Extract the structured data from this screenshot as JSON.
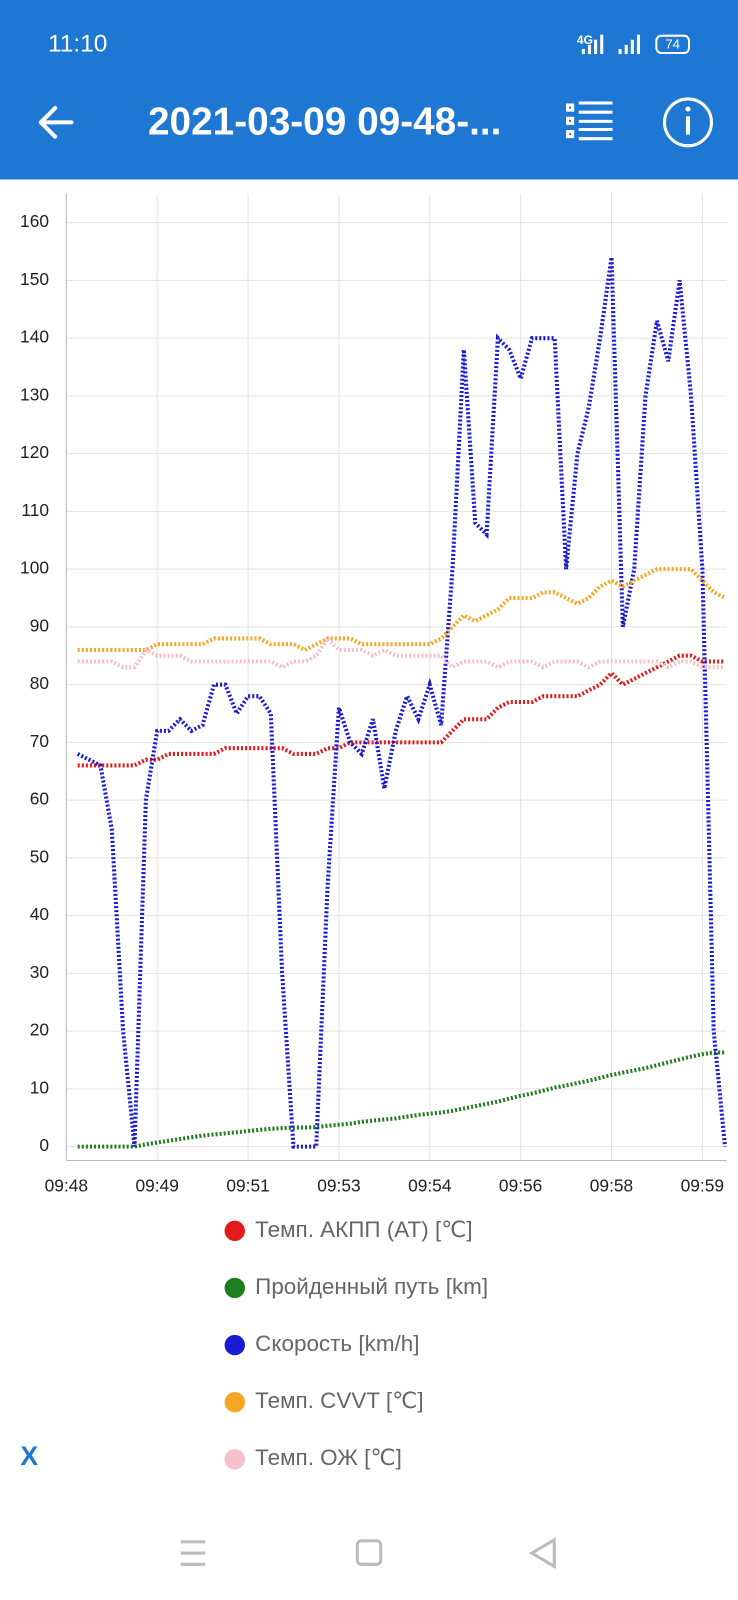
{
  "status_bar": {
    "time": "11:10",
    "network": "4G",
    "battery": "74"
  },
  "header": {
    "title": "2021-03-09 09-48-..."
  },
  "close_button": "X",
  "chart_data": {
    "type": "line",
    "x": [
      48.2,
      48.4,
      48.6,
      48.8,
      49.0,
      49.2,
      49.4,
      49.6,
      49.8,
      50.0,
      50.2,
      50.4,
      50.6,
      50.8,
      51.0,
      51.2,
      51.4,
      51.6,
      51.8,
      52.0,
      52.2,
      52.4,
      52.6,
      52.8,
      53.0,
      53.2,
      53.4,
      53.6,
      53.8,
      54.0,
      54.2,
      54.4,
      54.6,
      54.8,
      55.0,
      55.2,
      55.4,
      55.6,
      55.8,
      56.0,
      56.2,
      56.4,
      56.6,
      56.8,
      57.0,
      57.2,
      57.4,
      57.6,
      57.8,
      58.0,
      58.2,
      58.4,
      58.6,
      58.8,
      59.0,
      59.2,
      59.4,
      59.6
    ],
    "xlim": [
      48,
      59.63
    ],
    "xticks": [
      {
        "value": 48,
        "label": "09:48"
      },
      {
        "value": 49.6,
        "label": "09:49"
      },
      {
        "value": 51.2,
        "label": "09:51"
      },
      {
        "value": 52.8,
        "label": "09:53"
      },
      {
        "value": 54.4,
        "label": "09:54"
      },
      {
        "value": 56,
        "label": "09:56"
      },
      {
        "value": 57.6,
        "label": "09:58"
      },
      {
        "value": 59.2,
        "label": "09:59"
      }
    ],
    "ylim": [
      -2.4,
      165
    ],
    "yticks": [
      0,
      10,
      20,
      30,
      40,
      50,
      60,
      70,
      80,
      90,
      100,
      110,
      120,
      130,
      140,
      150,
      160
    ],
    "grid": true,
    "series": [
      {
        "name": "Темп. АКПП (AT) [℃]",
        "color": "#e41a1a",
        "values": [
          66,
          66,
          66,
          66,
          66,
          66,
          67,
          67,
          68,
          68,
          68,
          68,
          68,
          69,
          69,
          69,
          69,
          69,
          69,
          68,
          68,
          68,
          69,
          69,
          70,
          70,
          70,
          70,
          70,
          70,
          70,
          70,
          70,
          72,
          74,
          74,
          74,
          76,
          77,
          77,
          77,
          78,
          78,
          78,
          78,
          79,
          80,
          82,
          80,
          81,
          82,
          83,
          84,
          85,
          85,
          84,
          84,
          84
        ]
      },
      {
        "name": "Пройденный путь [km]",
        "color": "#1e7d1e",
        "values": [
          0,
          0,
          0,
          0,
          0,
          0,
          0.4,
          0.7,
          1,
          1.3,
          1.6,
          1.9,
          2.1,
          2.3,
          2.5,
          2.7,
          2.9,
          3.1,
          3.2,
          3.3,
          3.3,
          3.4,
          3.6,
          3.8,
          4,
          4.3,
          4.5,
          4.7,
          4.9,
          5.2,
          5.5,
          5.7,
          5.9,
          6.2,
          6.6,
          7,
          7.4,
          7.8,
          8.3,
          8.8,
          9.2,
          9.7,
          10.2,
          10.6,
          11,
          11.4,
          11.9,
          12.4,
          12.8,
          13.2,
          13.6,
          14.1,
          14.6,
          15.1,
          15.6,
          16,
          16.3,
          16.3
        ]
      },
      {
        "name": "Скорость [km/h]",
        "color": "#1a1ad0",
        "values": [
          68,
          67,
          66,
          55,
          20,
          0,
          60,
          72,
          72,
          74,
          72,
          73,
          80,
          80,
          75,
          78,
          78,
          75,
          30,
          0,
          0,
          0,
          45,
          76,
          70,
          68,
          74,
          62,
          72,
          78,
          74,
          80,
          73,
          100,
          138,
          108,
          106,
          140,
          138,
          133,
          140,
          140,
          140,
          100,
          120,
          128,
          140,
          154,
          90,
          100,
          130,
          143,
          136,
          150,
          130,
          100,
          20,
          0
        ]
      },
      {
        "name": "Темп. CVVT [℃]",
        "color": "#f5a623",
        "values": [
          86,
          86,
          86,
          86,
          86,
          86,
          86,
          87,
          87,
          87,
          87,
          87,
          88,
          88,
          88,
          88,
          88,
          87,
          87,
          87,
          86,
          87,
          88,
          88,
          88,
          87,
          87,
          87,
          87,
          87,
          87,
          87,
          88,
          90,
          92,
          91,
          92,
          93,
          95,
          95,
          95,
          96,
          96,
          95,
          94,
          95,
          97,
          98,
          97,
          98,
          99,
          100,
          100,
          100,
          100,
          98,
          96,
          95
        ]
      },
      {
        "name": "Темп. ОЖ [℃]",
        "color": "#f7bfc9",
        "values": [
          84,
          84,
          84,
          84,
          83,
          83,
          86,
          85,
          85,
          85,
          84,
          84,
          84,
          84,
          84,
          84,
          84,
          84,
          83,
          84,
          84,
          85,
          88,
          86,
          86,
          86,
          85,
          86,
          85,
          85,
          85,
          85,
          85,
          83,
          84,
          84,
          84,
          83,
          84,
          84,
          84,
          83,
          84,
          84,
          84,
          83,
          84,
          84,
          84,
          84,
          84,
          84,
          83,
          84,
          84,
          83,
          83,
          83
        ]
      }
    ]
  }
}
